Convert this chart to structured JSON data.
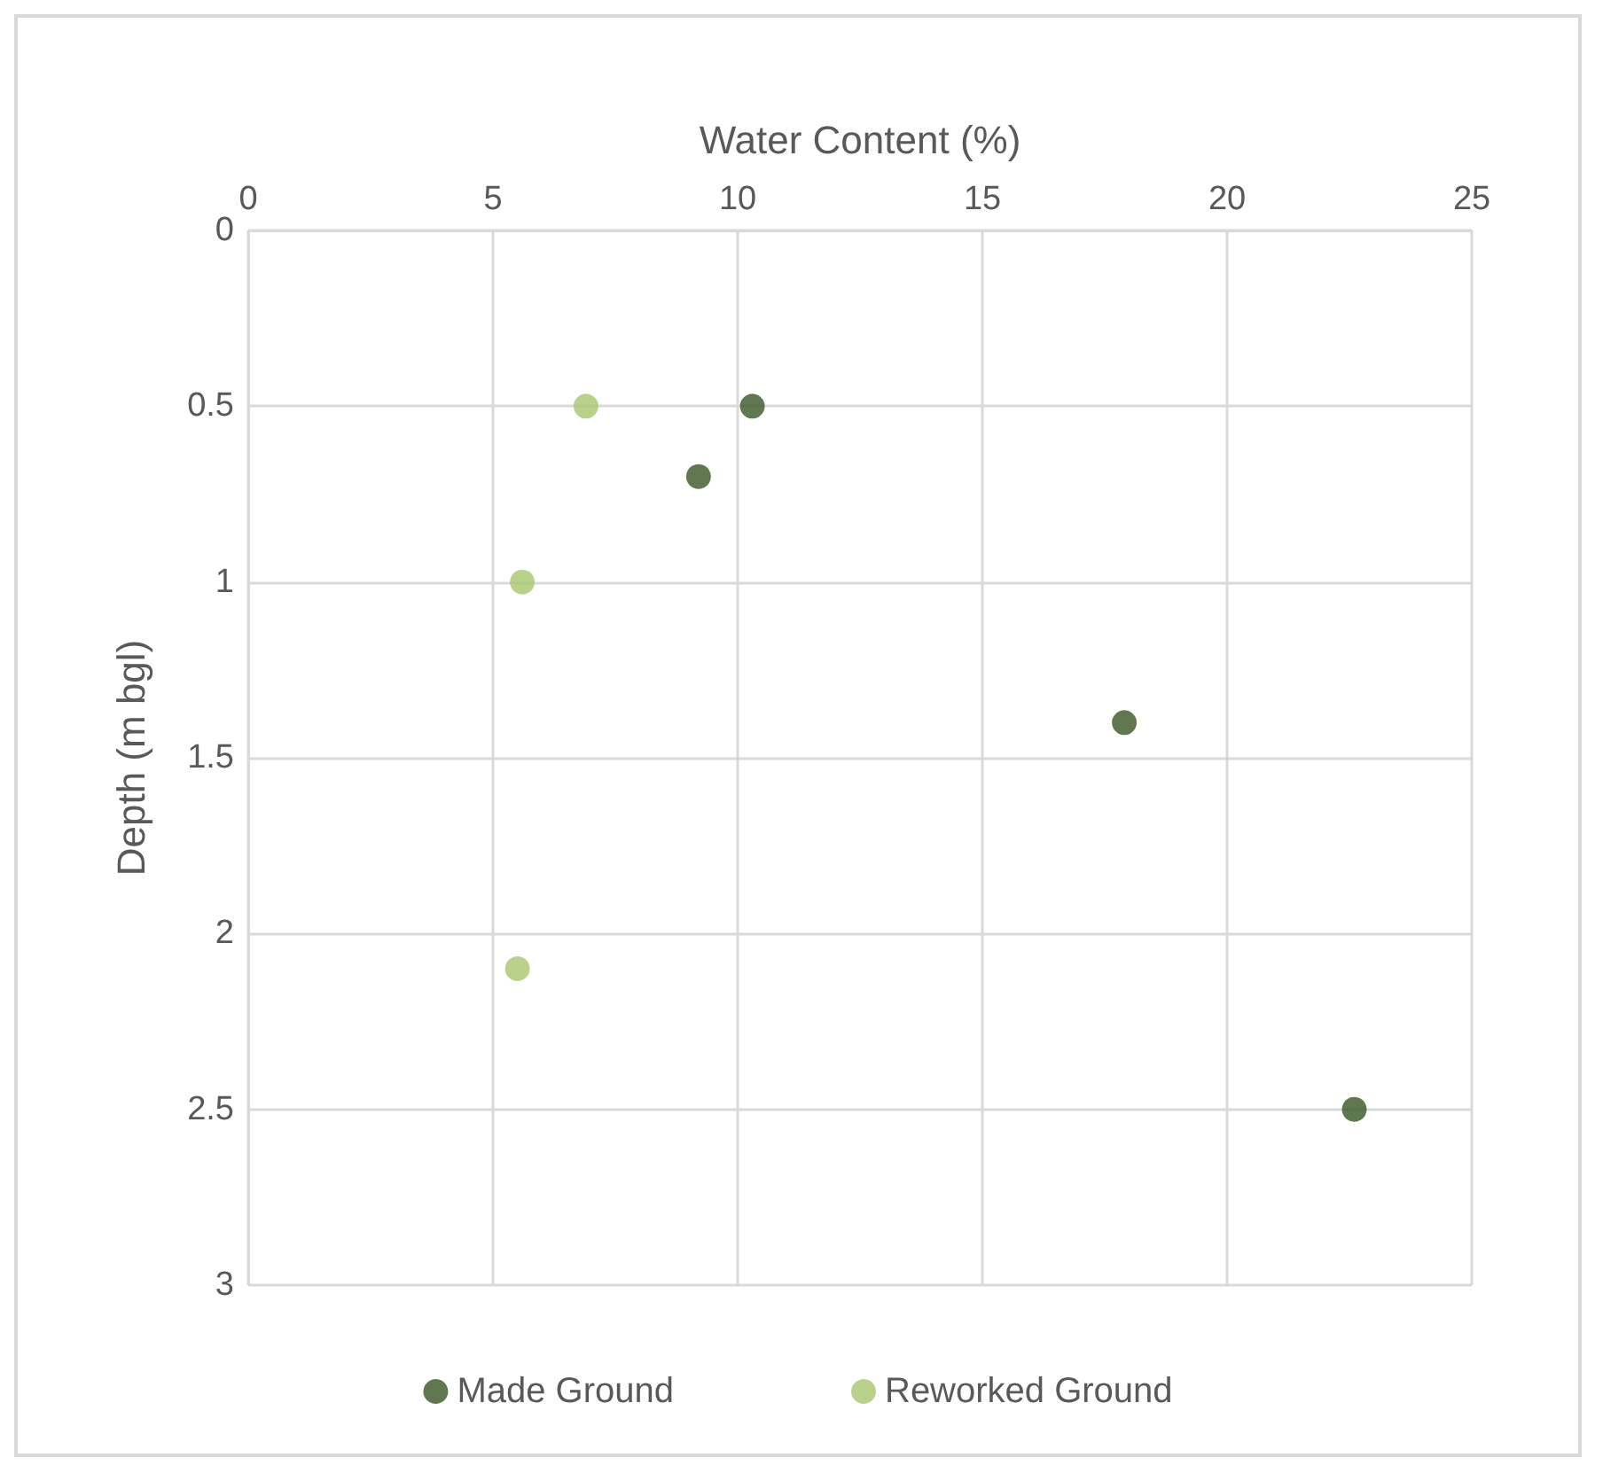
{
  "chart_data": {
    "type": "scatter",
    "xlabel": "Water Content (%)",
    "ylabel": "Depth (m bgl)",
    "xlim": [
      0,
      25
    ],
    "xticks": [
      0,
      5,
      10,
      15,
      20,
      25
    ],
    "ylim": [
      3,
      0
    ],
    "yticks": [
      0,
      0.5,
      1,
      1.5,
      2,
      2.5,
      3
    ],
    "grid": true,
    "legend": "bottom",
    "marker": "circle",
    "series": [
      {
        "name": "Made Ground",
        "color": "#375623",
        "x": [
          10.3,
          9.2,
          17.9,
          22.6
        ],
        "values": [
          0.5,
          0.7,
          1.4,
          2.5
        ]
      },
      {
        "name": "Reworked Ground",
        "color": "#a9c56c",
        "x": [
          6.9,
          5.6,
          5.5
        ],
        "values": [
          0.5,
          1.0,
          2.1
        ]
      }
    ]
  }
}
